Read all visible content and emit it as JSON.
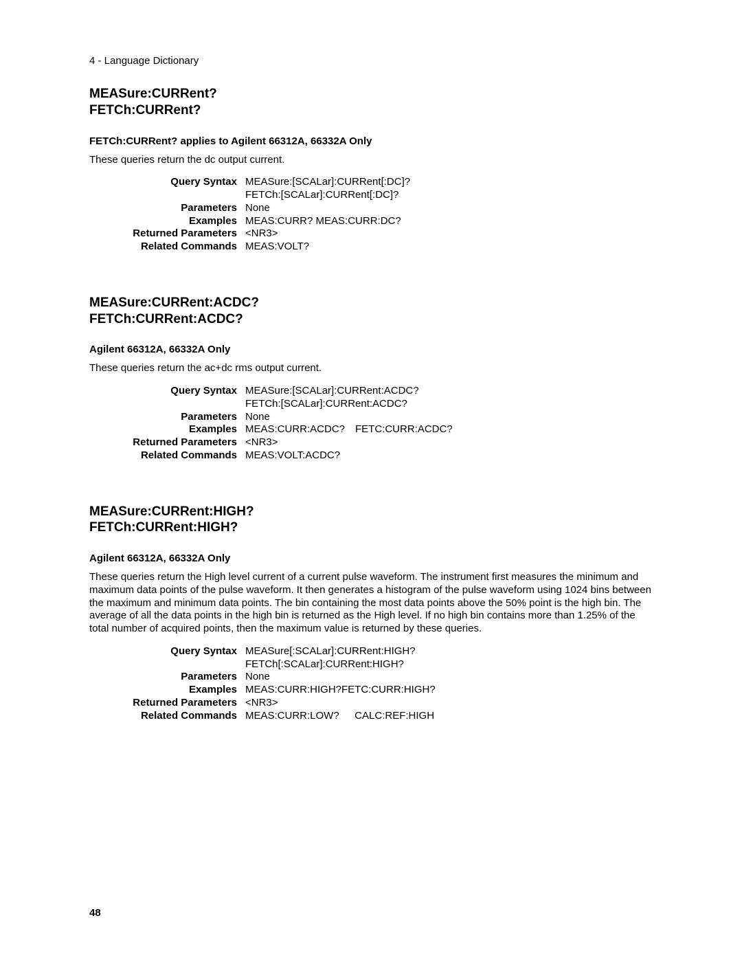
{
  "chapter_header": "4 - Language Dictionary",
  "page_number": "48",
  "sections": [
    {
      "title_line1": "MEASure:CURRent?",
      "title_line2": "FETCh:CURRent?",
      "subhead": "FETCh:CURRent? applies to Agilent 66312A, 66332A Only",
      "body": "These queries return the dc output current.",
      "rows": {
        "query_syntax_label": "Query Syntax",
        "query_syntax_line1": "MEASure:[SCALar]:CURRent[:DC]?",
        "query_syntax_line2": "FETCh:[SCALar]:CURRent[:DC]?",
        "parameters_label": "Parameters",
        "parameters_value": "None",
        "examples_label": "Examples",
        "examples_value": "MEAS:CURR? MEAS:CURR:DC?",
        "returned_label": "Returned Parameters",
        "returned_value": "<NR3>",
        "related_label": "Related Commands",
        "related_value": "MEAS:VOLT?"
      }
    },
    {
      "title_line1": "MEASure:CURRent:ACDC?",
      "title_line2": "FETCh:CURRent:ACDC?",
      "subhead": "Agilent 66312A, 66332A Only",
      "body": "These queries return the ac+dc rms output current.",
      "rows": {
        "query_syntax_label": "Query Syntax",
        "query_syntax_line1": "MEASure:[SCALar]:CURRent:ACDC?",
        "query_syntax_line2": "FETCh:[SCALar]:CURRent:ACDC?",
        "parameters_label": "Parameters",
        "parameters_value": "None",
        "examples_label": "Examples",
        "examples_value": "MEAS:CURR:ACDC? FETC:CURR:ACDC?",
        "returned_label": "Returned Parameters",
        "returned_value": "<NR3>",
        "related_label": "Related Commands",
        "related_value": "MEAS:VOLT:ACDC?"
      }
    },
    {
      "title_line1": "MEASure:CURRent:HIGH?",
      "title_line2": "FETCh:CURRent:HIGH?",
      "subhead": "Agilent 66312A, 66332A Only",
      "body": "These queries return the High level current of a current pulse waveform. The instrument first measures the minimum and maximum data points of the pulse waveform. It then generates a histogram of the pulse waveform using 1024 bins between the maximum and minimum data points. The bin containing the most data points above the 50% point is the high bin. The average of all the data points in the high bin is returned as the High level. If no high bin contains more than 1.25% of the total number of acquired points, then the maximum value is returned by these queries.",
      "rows": {
        "query_syntax_label": "Query Syntax",
        "query_syntax_line1": "MEASure[:SCALar]:CURRent:HIGH?",
        "query_syntax_line2": "FETCh[:SCALar]:CURRent:HIGH?",
        "parameters_label": "Parameters",
        "parameters_value": "None",
        "examples_label": "Examples",
        "examples_value": "MEAS:CURR:HIGH?FETC:CURR:HIGH?",
        "returned_label": "Returned Parameters",
        "returned_value": "<NR3>",
        "related_label": "Related Commands",
        "related_value": "MEAS:CURR:LOW?  CALC:REF:HIGH"
      }
    }
  ]
}
